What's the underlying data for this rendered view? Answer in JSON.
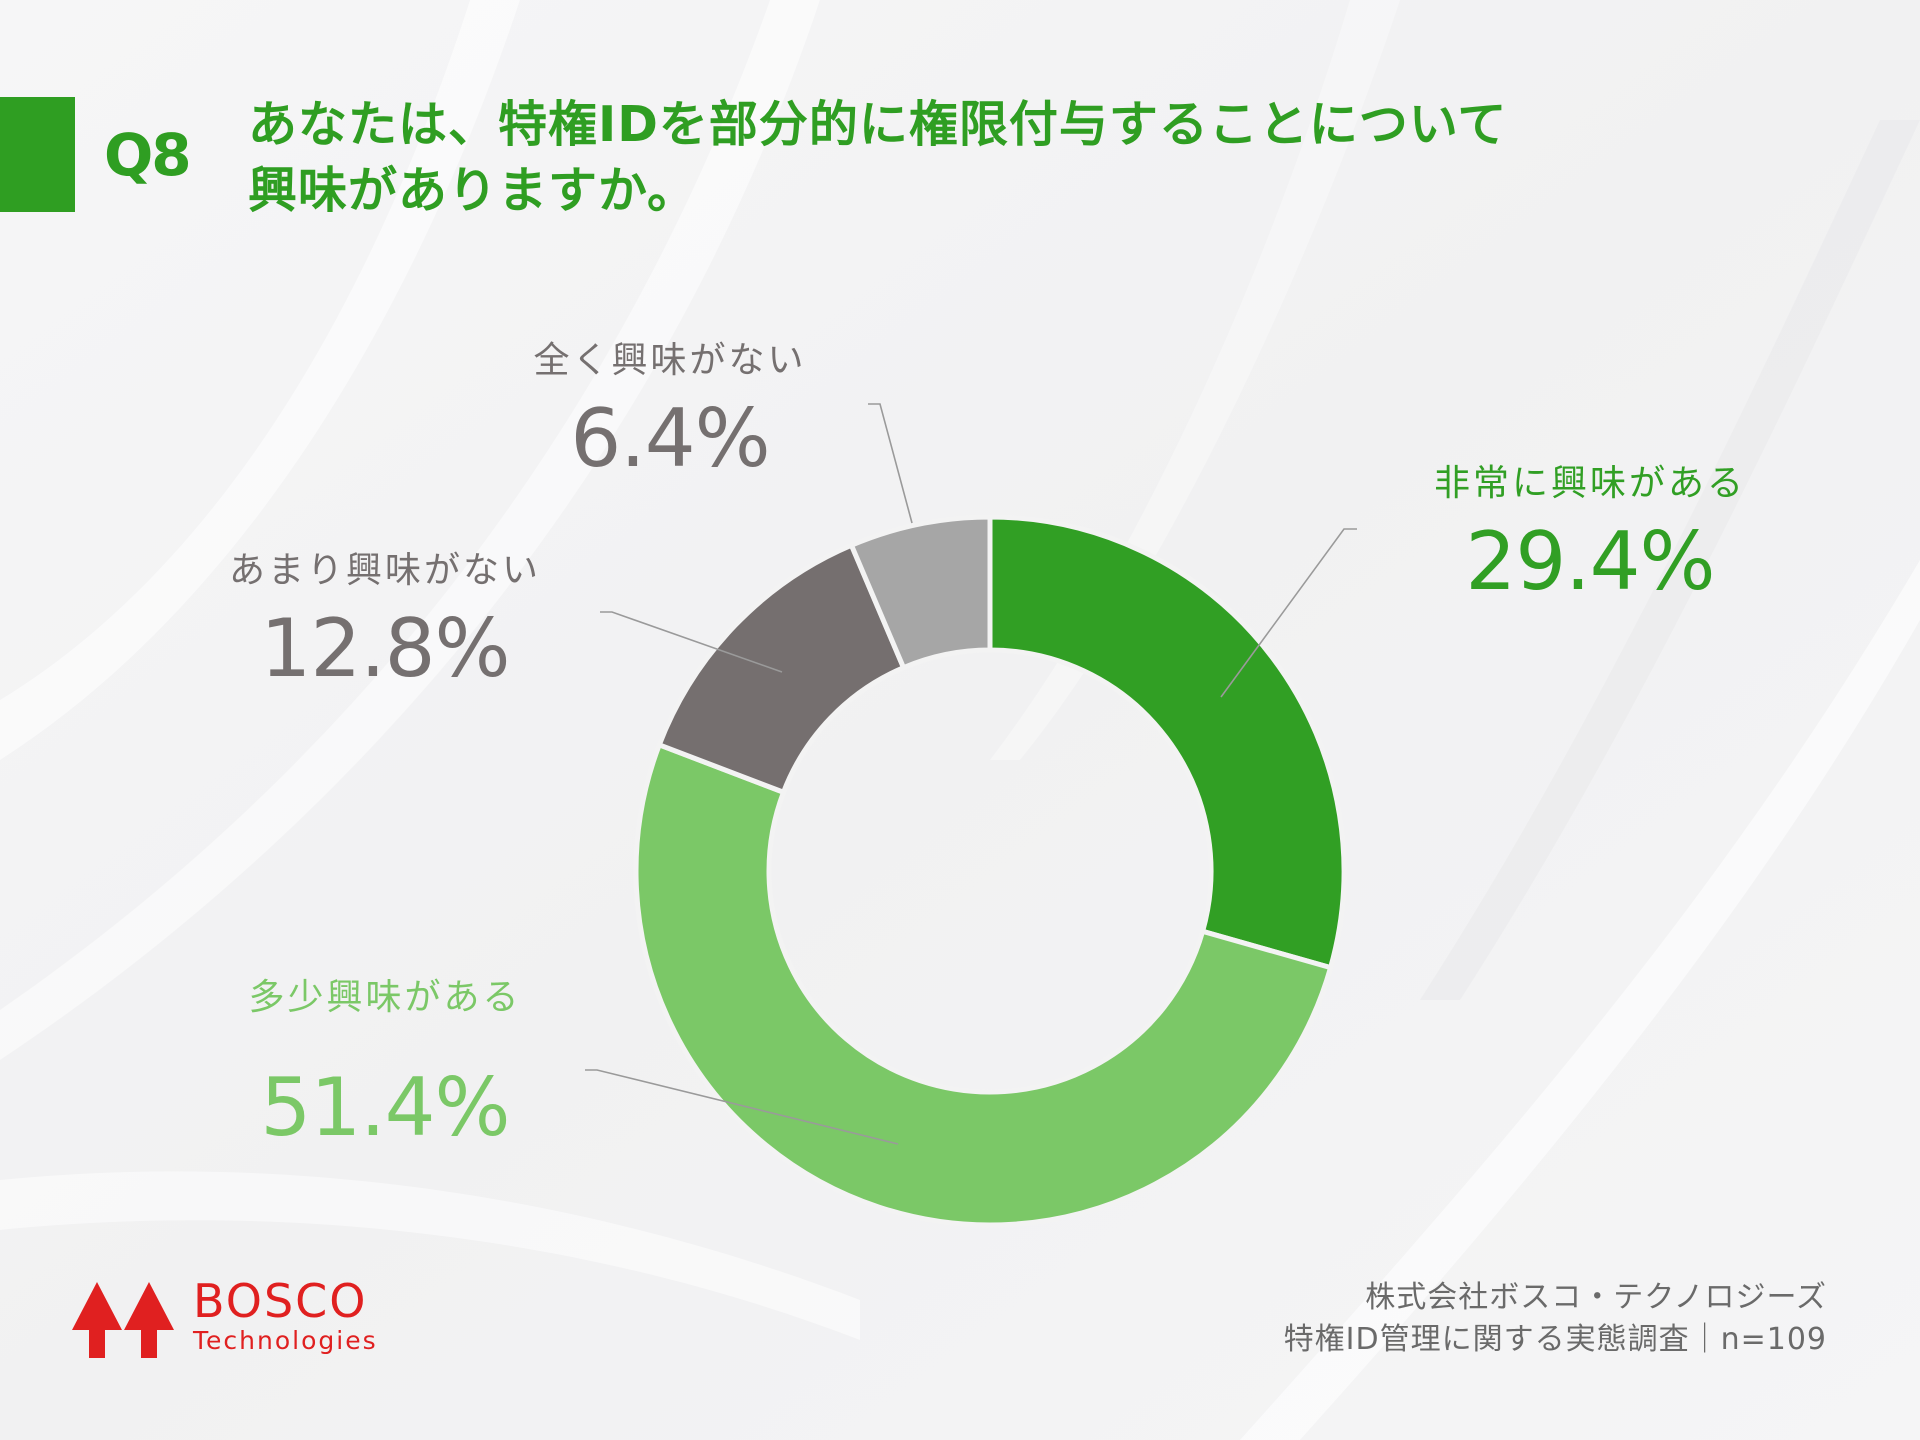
{
  "header": {
    "question_number": "Q8",
    "title_line1": "あなたは、特権IDを部分的に権限付与することについて",
    "title_line2": "興味がありますか。"
  },
  "colors": {
    "accent": "#2f9e22",
    "very_interested": "#319f24",
    "somewhat_interested": "#7bc867",
    "not_very_interested": "#756f6f",
    "not_at_all_interested": "#a6a6a6",
    "label_gray": "#757070",
    "leader_line": "#9a9a9a",
    "logo_red": "#e02020"
  },
  "chart_data": {
    "type": "pie",
    "variant": "donut",
    "title": "あなたは、特権IDを部分的に権限付与することについて興味がありますか。",
    "categories": [
      "非常に興味がある",
      "多少興味がある",
      "あまり興味がない",
      "全く興味がない"
    ],
    "values": [
      29.4,
      51.4,
      12.8,
      6.4
    ],
    "value_labels": [
      "29.4%",
      "51.4%",
      "12.8%",
      "6.4%"
    ],
    "unit": "%",
    "start_angle_deg": 0,
    "direction": "clockwise",
    "sample_size": "n=109",
    "legend": "none (direct labels with leader lines)"
  },
  "labels": [
    {
      "name": "非常に興味がある",
      "pct": "29.4%"
    },
    {
      "name": "多少興味がある",
      "pct": "51.4%"
    },
    {
      "name": "あまり興味がない",
      "pct": "12.8%"
    },
    {
      "name": "全く興味がない",
      "pct": "6.4%"
    }
  ],
  "footer": {
    "logo_main": "BOSCO",
    "logo_sub": "Technologies",
    "source_line1": "株式会社ボスコ・テクノロジーズ",
    "source_line2": "特権ID管理に関する実態調査｜n=109"
  }
}
